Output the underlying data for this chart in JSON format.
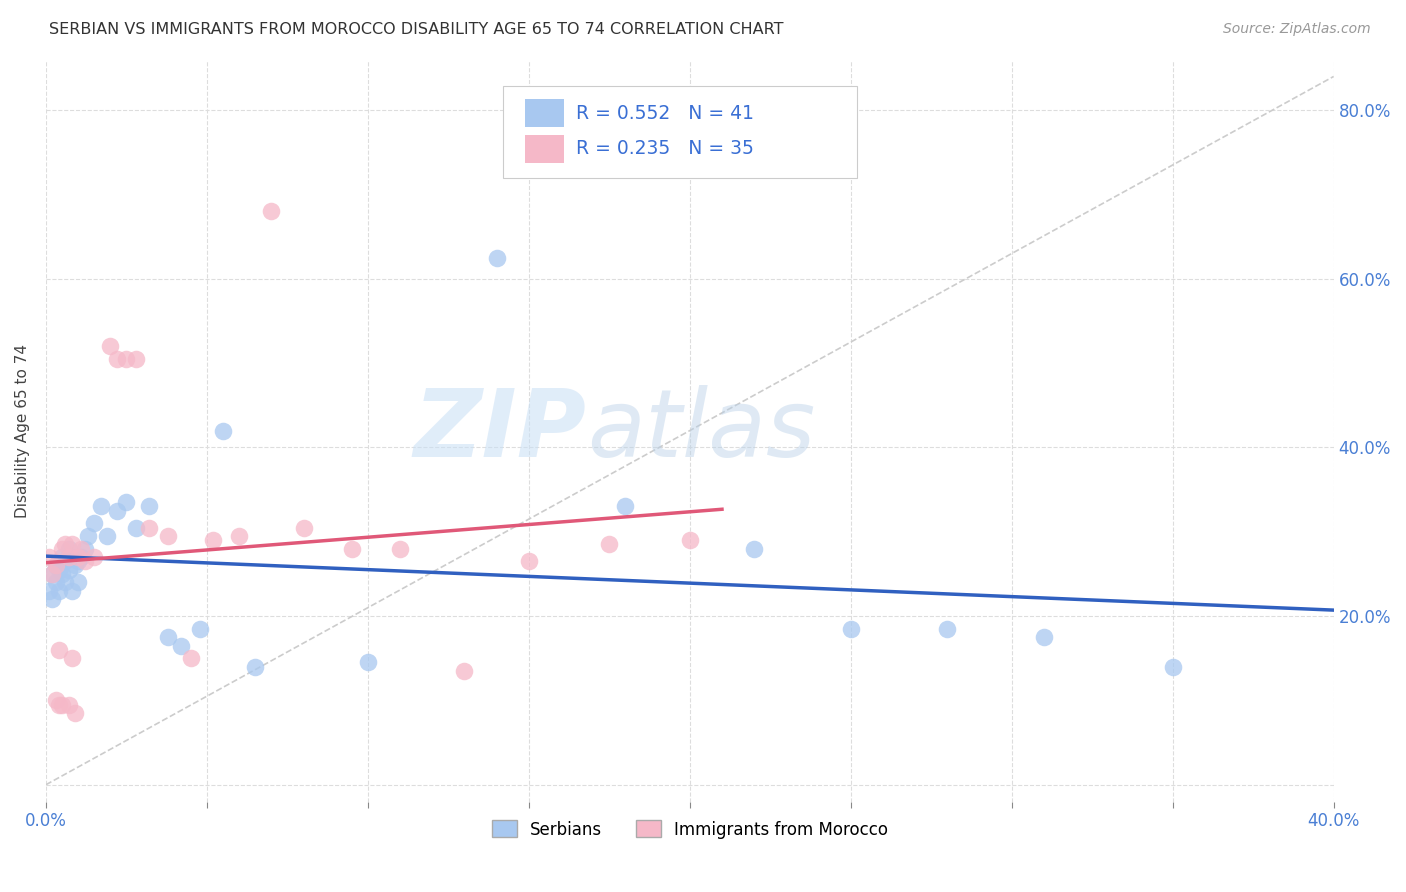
{
  "title": "SERBIAN VS IMMIGRANTS FROM MOROCCO DISABILITY AGE 65 TO 74 CORRELATION CHART",
  "source": "Source: ZipAtlas.com",
  "ylabel": "Disability Age 65 to 74",
  "xlim": [
    0.0,
    0.4
  ],
  "ylim": [
    -0.02,
    0.86
  ],
  "xticks": [
    0.0,
    0.05,
    0.1,
    0.15,
    0.2,
    0.25,
    0.3,
    0.35,
    0.4
  ],
  "yticks": [
    0.0,
    0.2,
    0.4,
    0.6,
    0.8
  ],
  "serbian_R": 0.552,
  "serbian_N": 41,
  "morocco_R": 0.235,
  "morocco_N": 35,
  "serbian_color": "#a8c8f0",
  "morocco_color": "#f5b8c8",
  "serbian_line_color": "#3060c0",
  "morocco_line_color": "#e05878",
  "diagonal_color": "#cccccc",
  "background_color": "#ffffff",
  "grid_color": "#dddddd",
  "watermark_zip": "ZIP",
  "watermark_atlas": "atlas",
  "serbian_x": [
    0.001,
    0.002,
    0.002,
    0.003,
    0.003,
    0.004,
    0.004,
    0.005,
    0.005,
    0.006,
    0.006,
    0.007,
    0.007,
    0.008,
    0.008,
    0.009,
    0.01,
    0.01,
    0.011,
    0.012,
    0.013,
    0.015,
    0.017,
    0.019,
    0.022,
    0.025,
    0.028,
    0.032,
    0.038,
    0.042,
    0.048,
    0.055,
    0.065,
    0.1,
    0.14,
    0.18,
    0.22,
    0.25,
    0.28,
    0.31,
    0.35
  ],
  "serbian_y": [
    0.23,
    0.25,
    0.22,
    0.24,
    0.26,
    0.255,
    0.23,
    0.27,
    0.25,
    0.265,
    0.24,
    0.28,
    0.255,
    0.27,
    0.23,
    0.26,
    0.265,
    0.24,
    0.27,
    0.28,
    0.295,
    0.31,
    0.33,
    0.295,
    0.325,
    0.335,
    0.305,
    0.33,
    0.175,
    0.165,
    0.185,
    0.42,
    0.14,
    0.145,
    0.625,
    0.33,
    0.28,
    0.185,
    0.185,
    0.175,
    0.14
  ],
  "morocco_x": [
    0.001,
    0.002,
    0.003,
    0.003,
    0.004,
    0.004,
    0.005,
    0.005,
    0.006,
    0.007,
    0.007,
    0.008,
    0.008,
    0.009,
    0.01,
    0.011,
    0.012,
    0.015,
    0.02,
    0.022,
    0.025,
    0.028,
    0.032,
    0.038,
    0.045,
    0.052,
    0.06,
    0.07,
    0.08,
    0.095,
    0.11,
    0.13,
    0.15,
    0.175,
    0.2
  ],
  "morocco_y": [
    0.27,
    0.25,
    0.26,
    0.1,
    0.095,
    0.16,
    0.28,
    0.095,
    0.285,
    0.27,
    0.095,
    0.285,
    0.15,
    0.085,
    0.27,
    0.28,
    0.265,
    0.27,
    0.52,
    0.505,
    0.505,
    0.505,
    0.305,
    0.295,
    0.15,
    0.29,
    0.295,
    0.68,
    0.305,
    0.28,
    0.28,
    0.135,
    0.265,
    0.285,
    0.29
  ]
}
